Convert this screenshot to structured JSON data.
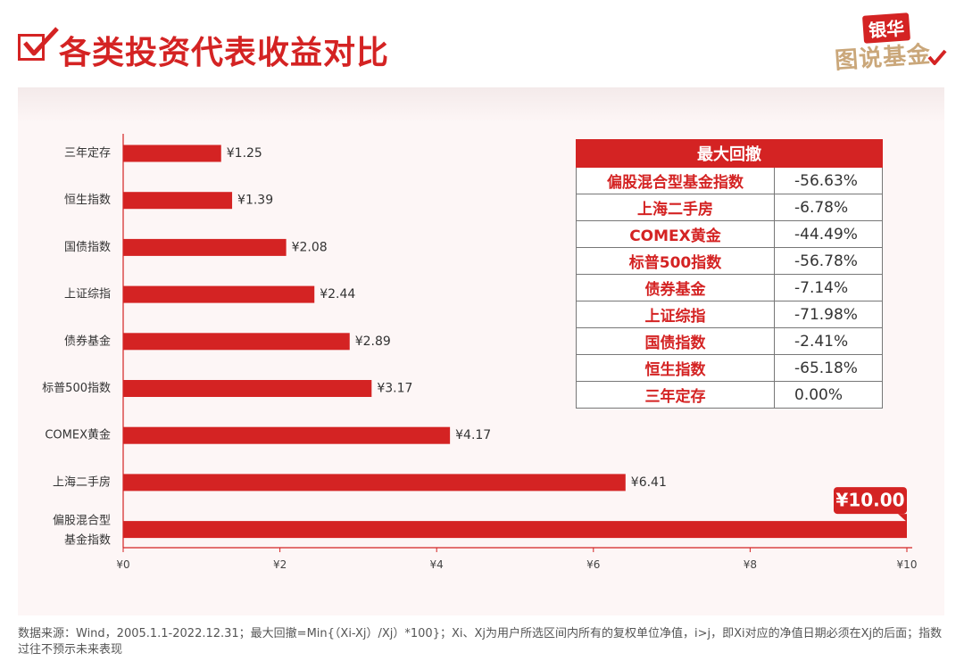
{
  "header": {
    "title": "各类投资代表收益对比",
    "brand_top": "银华",
    "brand_bottom": "图说基金"
  },
  "chart_data": {
    "type": "bar",
    "orientation": "horizontal",
    "categories": [
      "三年定存",
      "恒生指数",
      "国债指数",
      "上证综指",
      "债券基金",
      "标普500指数",
      "COMEX黄金",
      "上海二手房",
      "偏股混合型\n基金指数"
    ],
    "values": [
      1.25,
      1.39,
      2.08,
      2.44,
      2.89,
      3.17,
      4.17,
      6.41,
      10.0
    ],
    "value_labels": [
      "¥1.25",
      "¥1.39",
      "¥2.08",
      "¥2.44",
      "¥2.89",
      "¥3.17",
      "¥4.17",
      "¥6.41",
      "¥10.00"
    ],
    "highlight_index": 8,
    "xlim": [
      0,
      10
    ],
    "xticks": [
      0,
      2,
      4,
      6,
      8,
      10
    ],
    "xtick_labels": [
      "¥0",
      "¥2",
      "¥4",
      "¥6",
      "¥8",
      "¥10"
    ],
    "bar_color": "#d42323"
  },
  "drawdown_table": {
    "header": "最大回撤",
    "rows": [
      {
        "name": "偏股混合型基金指数",
        "value": "-56.63%"
      },
      {
        "name": "上海二手房",
        "value": "-6.78%"
      },
      {
        "name": "COMEX黄金",
        "value": "-44.49%"
      },
      {
        "name": "标普500指数",
        "value": "-56.78%"
      },
      {
        "name": "债券基金",
        "value": "-7.14%"
      },
      {
        "name": "上证综指",
        "value": "-71.98%"
      },
      {
        "name": "国债指数",
        "value": "-2.41%"
      },
      {
        "name": "恒生指数",
        "value": "-65.18%"
      },
      {
        "name": "三年定存",
        "value": "0.00%"
      }
    ]
  },
  "footnote": "数据来源：Wind，2005.1.1-2022.12.31；最大回撤=Min{（Xi-Xj）/Xj）*100}；Xi、Xj为用户所选区间内所有的复权单位净值，i>j，即Xi对应的净值日期必须在Xj的后面；指数过往不预示未来表现",
  "colors": {
    "accent": "#d42323",
    "brand_gold": "#caa77a",
    "panel_bg": "#fdf6f6"
  }
}
